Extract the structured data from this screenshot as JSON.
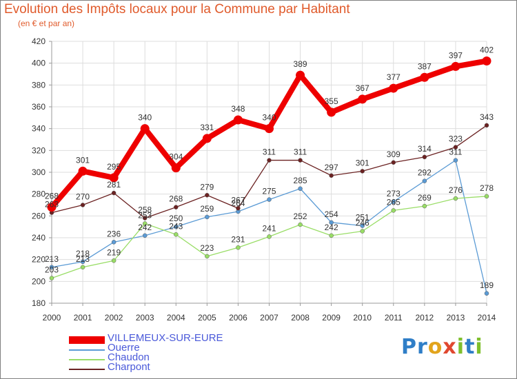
{
  "title": "Evolution des Impôts locaux pour la Commune par Habitant",
  "subtitle": "(en € et par an)",
  "logo": [
    "P",
    "r",
    "o",
    "x",
    "i",
    "t",
    "i"
  ],
  "colors": {
    "background": "#ffffff",
    "grid": "#dddddd",
    "title": "#e05a2b",
    "legend_text": "#4a59d9",
    "logo": [
      "#2f7ec7",
      "#2f7ec7",
      "#e2a41c",
      "#e0472f",
      "#7fbf2d",
      "#2f7ec7",
      "#7fbf2d"
    ]
  },
  "chart_data": {
    "type": "line",
    "x": [
      2000,
      2001,
      2002,
      2003,
      2004,
      2005,
      2006,
      2007,
      2008,
      2009,
      2010,
      2011,
      2012,
      2013,
      2014
    ],
    "ylim": [
      180,
      420
    ],
    "yticks": [
      180,
      200,
      220,
      240,
      260,
      280,
      300,
      320,
      340,
      360,
      380,
      400,
      420
    ],
    "grid": true,
    "legend_position": "bottom-left",
    "series": [
      {
        "name": "VILLEMEUX-SUR-EURE",
        "color": "#ee0000",
        "values": [
          268,
          301,
          295,
          340,
          304,
          331,
          348,
          340,
          389,
          355,
          367,
          377,
          387,
          397,
          402
        ]
      },
      {
        "name": "Ouerre",
        "color": "#5b9bd5",
        "values": [
          213,
          218,
          236,
          242,
          250,
          259,
          264,
          275,
          285,
          254,
          251,
          273,
          292,
          311,
          189
        ]
      },
      {
        "name": "Chaudon",
        "color": "#99dd66",
        "values": [
          203,
          213,
          219,
          253,
          243,
          223,
          231,
          241,
          252,
          242,
          246,
          265,
          269,
          276,
          278
        ]
      },
      {
        "name": "Charpont",
        "color": "#6b2222",
        "values": [
          263,
          270,
          281,
          258,
          268,
          279,
          267,
          311,
          311,
          297,
          301,
          309,
          314,
          323,
          343
        ]
      }
    ],
    "label_texts": [
      [
        "268",
        "301",
        "295",
        "340",
        "304",
        "331",
        "348",
        "340",
        "389",
        "355",
        "367",
        "377",
        "387",
        "397",
        "402"
      ],
      [
        "213",
        "218",
        "236",
        "242",
        "250",
        "259",
        "264",
        "275",
        "285",
        "254",
        "251",
        "273",
        "292",
        "311",
        "189"
      ],
      [
        "203",
        "213",
        "219",
        "253",
        "243",
        "223",
        "231",
        "241",
        "252",
        "242",
        "246",
        "265",
        "269",
        "276",
        "278"
      ],
      [
        "263",
        "270",
        "281",
        "258",
        "268",
        "279",
        "267",
        "311",
        "311",
        "297",
        "301",
        "309",
        "314",
        "323",
        "343"
      ]
    ]
  }
}
